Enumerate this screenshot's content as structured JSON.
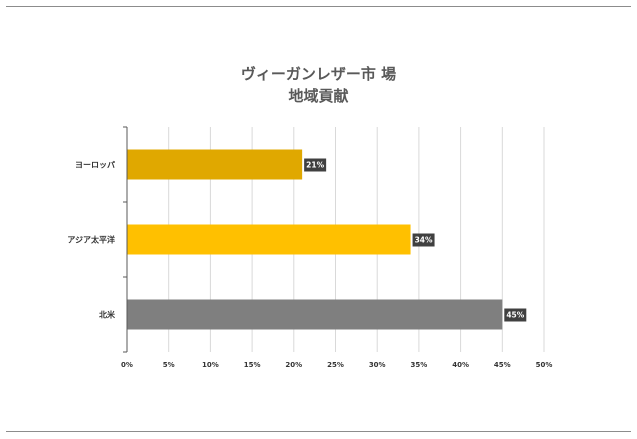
{
  "chart_data": {
    "type": "bar",
    "orientation": "horizontal",
    "title": [
      "ヴィーガンレザー市 場",
      "地域貢献"
    ],
    "categories": [
      "ヨーロッパ",
      "アジア太平洋",
      "北米"
    ],
    "values": [
      21,
      34,
      45
    ],
    "data_labels": [
      "21%",
      "34%",
      "45%"
    ],
    "bar_colors": [
      "#e0a800",
      "#ffc000",
      "#7f7f7f"
    ],
    "xlim": [
      0,
      50
    ],
    "xticks": [
      "0%",
      "5%",
      "10%",
      "15%",
      "20%",
      "25%",
      "30%",
      "35%",
      "40%",
      "45%",
      "50%"
    ],
    "grid": true,
    "legend": "none"
  }
}
